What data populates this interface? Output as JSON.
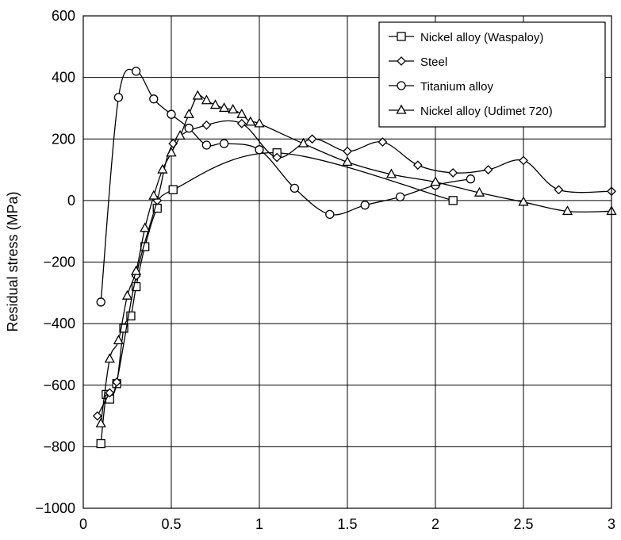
{
  "chart_data": {
    "type": "line",
    "title": "",
    "xlabel": "",
    "ylabel": "Residual stress (MPa)",
    "xlim": [
      0,
      3
    ],
    "ylim": [
      -1000,
      600
    ],
    "xticks": [
      0,
      0.5,
      1,
      1.5,
      2,
      2.5,
      3
    ],
    "xtick_labels": [
      "0",
      "0.5",
      "1",
      "1.5",
      "2",
      "2.5",
      "3"
    ],
    "yticks": [
      -1000,
      -800,
      -600,
      -400,
      -200,
      0,
      200,
      400,
      600
    ],
    "ytick_labels": [
      "−1000",
      "−800",
      "−600",
      "−400",
      "−200",
      "0",
      "200",
      "400",
      "600"
    ],
    "grid": true,
    "legend_position": "top-right",
    "series": [
      {
        "name": "Nickel alloy (Waspaloy)",
        "marker": "square",
        "points": [
          [
            0.1,
            -790
          ],
          [
            0.13,
            -630
          ],
          [
            0.15,
            -645
          ],
          [
            0.19,
            -595
          ],
          [
            0.23,
            -415
          ],
          [
            0.27,
            -375
          ],
          [
            0.3,
            -280
          ],
          [
            0.35,
            -150
          ],
          [
            0.42,
            -25
          ],
          [
            0.51,
            35
          ],
          [
            1.1,
            155
          ],
          [
            2.1,
            0
          ]
        ]
      },
      {
        "name": "Steel",
        "marker": "diamond",
        "points": [
          [
            0.08,
            -700
          ],
          [
            0.15,
            -625
          ],
          [
            0.19,
            -590
          ],
          [
            0.3,
            -245
          ],
          [
            0.42,
            0
          ],
          [
            0.51,
            185
          ],
          [
            0.7,
            245
          ],
          [
            0.9,
            250
          ],
          [
            1.1,
            140
          ],
          [
            1.3,
            200
          ],
          [
            1.5,
            160
          ],
          [
            1.7,
            190
          ],
          [
            1.9,
            115
          ],
          [
            2.1,
            90
          ],
          [
            2.3,
            100
          ],
          [
            2.5,
            130
          ],
          [
            2.7,
            35
          ],
          [
            3.0,
            30
          ]
        ]
      },
      {
        "name": "Titanium alloy",
        "marker": "circle",
        "points": [
          [
            0.1,
            -330
          ],
          [
            0.2,
            335
          ],
          [
            0.3,
            420
          ],
          [
            0.4,
            330
          ],
          [
            0.5,
            280
          ],
          [
            0.6,
            235
          ],
          [
            0.7,
            180
          ],
          [
            0.8,
            185
          ],
          [
            1.0,
            165
          ],
          [
            1.2,
            40
          ],
          [
            1.4,
            -45
          ],
          [
            1.6,
            -15
          ],
          [
            1.8,
            12
          ],
          [
            2.0,
            50
          ],
          [
            2.2,
            70
          ]
        ]
      },
      {
        "name": "Nickel alloy (Udimet 720)",
        "marker": "triangle",
        "points": [
          [
            0.1,
            -725
          ],
          [
            0.15,
            -515
          ],
          [
            0.2,
            -455
          ],
          [
            0.25,
            -310
          ],
          [
            0.3,
            -230
          ],
          [
            0.35,
            -90
          ],
          [
            0.4,
            15
          ],
          [
            0.45,
            100
          ],
          [
            0.5,
            155
          ],
          [
            0.55,
            210
          ],
          [
            0.6,
            280
          ],
          [
            0.65,
            340
          ],
          [
            0.7,
            325
          ],
          [
            0.75,
            310
          ],
          [
            0.8,
            300
          ],
          [
            0.85,
            295
          ],
          [
            0.9,
            280
          ],
          [
            0.95,
            255
          ],
          [
            1.0,
            250
          ],
          [
            1.25,
            185
          ],
          [
            1.5,
            125
          ],
          [
            1.75,
            85
          ],
          [
            2.0,
            60
          ],
          [
            2.25,
            25
          ],
          [
            2.5,
            -5
          ],
          [
            2.75,
            -35
          ],
          [
            3.0,
            -35
          ]
        ]
      }
    ]
  },
  "colors": {
    "line": "#000000",
    "grid": "#000000",
    "background": "#ffffff"
  }
}
